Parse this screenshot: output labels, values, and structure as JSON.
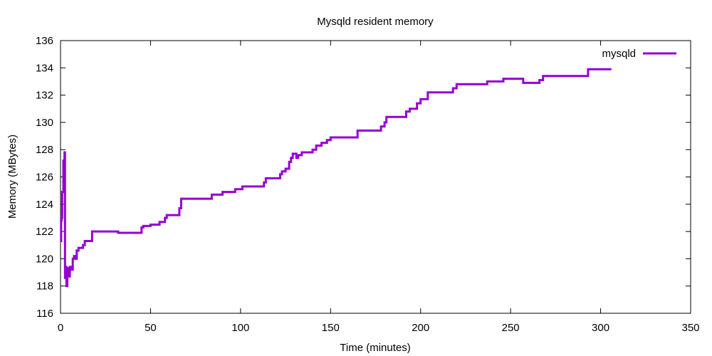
{
  "chart_data": {
    "type": "line",
    "title": "Mysqld resident memory",
    "xlabel": "Time (minutes)",
    "ylabel": "Memory (MBytes)",
    "xlim": [
      0,
      350
    ],
    "ylim": [
      116,
      136
    ],
    "xticks": [
      0,
      50,
      100,
      150,
      200,
      250,
      300,
      350
    ],
    "yticks": [
      116,
      118,
      120,
      122,
      124,
      126,
      128,
      130,
      132,
      134,
      136
    ],
    "grid": false,
    "legend_position": "top-right",
    "series": [
      {
        "name": "mysqld",
        "color": "#9400d3",
        "step": true,
        "points": [
          [
            0.0,
            121.3
          ],
          [
            0.3,
            122.8
          ],
          [
            0.6,
            123.0
          ],
          [
            0.9,
            124.9
          ],
          [
            1.3,
            124.9
          ],
          [
            1.6,
            127.2
          ],
          [
            1.9,
            125.0
          ],
          [
            2.2,
            127.8
          ],
          [
            2.5,
            118.6
          ],
          [
            2.8,
            119.4
          ],
          [
            3.3,
            118.0
          ],
          [
            3.8,
            119.3
          ],
          [
            4.5,
            118.7
          ],
          [
            5.2,
            119.4
          ],
          [
            6.0,
            119.2
          ],
          [
            6.8,
            120.0
          ],
          [
            7.5,
            120.2
          ],
          [
            8.3,
            120.0
          ],
          [
            9.0,
            120.6
          ],
          [
            10.0,
            120.8
          ],
          [
            12.5,
            121.0
          ],
          [
            13.5,
            121.3
          ],
          [
            15.0,
            121.3
          ],
          [
            17.5,
            122.0
          ],
          [
            30.0,
            122.0
          ],
          [
            32.0,
            121.9
          ],
          [
            45.0,
            122.3
          ],
          [
            46.0,
            122.4
          ],
          [
            50.0,
            122.5
          ],
          [
            55.0,
            122.7
          ],
          [
            58.0,
            123.0
          ],
          [
            59.0,
            123.2
          ],
          [
            66.0,
            123.7
          ],
          [
            67.0,
            124.4
          ],
          [
            84.0,
            124.7
          ],
          [
            90.0,
            124.9
          ],
          [
            97.0,
            125.1
          ],
          [
            101.0,
            125.3
          ],
          [
            113.0,
            125.6
          ],
          [
            114.0,
            125.9
          ],
          [
            122.0,
            126.2
          ],
          [
            123.0,
            126.4
          ],
          [
            125.0,
            126.6
          ],
          [
            127.0,
            127.1
          ],
          [
            128.0,
            127.4
          ],
          [
            129.0,
            127.7
          ],
          [
            131.0,
            127.4
          ],
          [
            132.0,
            127.6
          ],
          [
            134.0,
            127.8
          ],
          [
            140.0,
            128.0
          ],
          [
            142.0,
            128.3
          ],
          [
            145.0,
            128.5
          ],
          [
            148.0,
            128.7
          ],
          [
            150.0,
            128.9
          ],
          [
            165.0,
            129.4
          ],
          [
            178.0,
            129.7
          ],
          [
            180.0,
            130.0
          ],
          [
            181.0,
            130.4
          ],
          [
            192.0,
            130.8
          ],
          [
            194.0,
            131.0
          ],
          [
            198.0,
            131.4
          ],
          [
            200.0,
            131.7
          ],
          [
            204.0,
            132.2
          ],
          [
            218.0,
            132.5
          ],
          [
            220.0,
            132.8
          ],
          [
            237.0,
            133.0
          ],
          [
            246.0,
            133.2
          ],
          [
            257.0,
            132.9
          ],
          [
            266.0,
            133.1
          ],
          [
            268.0,
            133.4
          ],
          [
            293.0,
            133.9
          ],
          [
            306.0,
            133.9
          ]
        ]
      }
    ]
  }
}
